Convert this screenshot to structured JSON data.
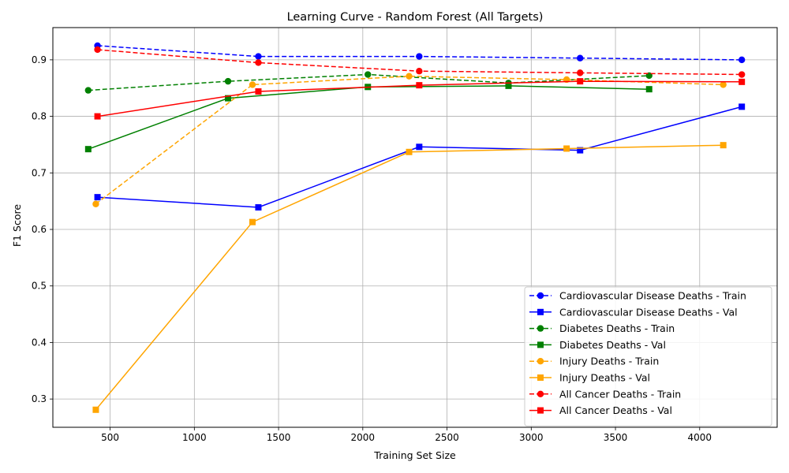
{
  "chart_data": {
    "type": "line",
    "title": "Learning Curve - Random Forest (All Targets)",
    "xlabel": "Training Set Size",
    "ylabel": "F1 Score",
    "xlim": [
      160,
      4460
    ],
    "ylim": [
      0.25,
      0.957
    ],
    "xticks": [
      500,
      1000,
      1500,
      2000,
      2500,
      3000,
      3500,
      4000
    ],
    "yticks": [
      0.3,
      0.4,
      0.5,
      0.6,
      0.7,
      0.8,
      0.9
    ],
    "grid": true,
    "legend_position": "lower-right",
    "series": [
      {
        "name": "Cardiovascular Disease Deaths - Train",
        "color": "#0000ff",
        "linestyle": "dashed",
        "marker": "circle",
        "x": [
          425,
          1380,
          2335,
          3290,
          4250
        ],
        "y": [
          0.925,
          0.906,
          0.906,
          0.903,
          0.9
        ]
      },
      {
        "name": "Cardiovascular Disease Deaths - Val",
        "color": "#0000ff",
        "linestyle": "solid",
        "marker": "square",
        "x": [
          425,
          1380,
          2335,
          3290,
          4250
        ],
        "y": [
          0.657,
          0.639,
          0.746,
          0.74,
          0.817
        ]
      },
      {
        "name": "Diabetes Deaths - Train",
        "color": "#008000",
        "linestyle": "dashed",
        "marker": "circle",
        "x": [
          370,
          1200,
          2030,
          2865,
          3700
        ],
        "y": [
          0.846,
          0.862,
          0.874,
          0.859,
          0.872
        ]
      },
      {
        "name": "Diabetes Deaths - Val",
        "color": "#008000",
        "linestyle": "solid",
        "marker": "square",
        "x": [
          370,
          1200,
          2030,
          2865,
          3700
        ],
        "y": [
          0.742,
          0.832,
          0.852,
          0.854,
          0.848
        ]
      },
      {
        "name": "Injury Deaths - Train",
        "color": "#ffa500",
        "linestyle": "dashed",
        "marker": "circle",
        "x": [
          415,
          1345,
          2275,
          3210,
          4140
        ],
        "y": [
          0.645,
          0.856,
          0.871,
          0.865,
          0.856
        ]
      },
      {
        "name": "Injury Deaths - Val",
        "color": "#ffa500",
        "linestyle": "solid",
        "marker": "square",
        "x": [
          415,
          1345,
          2275,
          3210,
          4140
        ],
        "y": [
          0.281,
          0.613,
          0.737,
          0.743,
          0.749
        ]
      },
      {
        "name": "All Cancer Deaths - Train",
        "color": "#ff0000",
        "linestyle": "dashed",
        "marker": "circle",
        "x": [
          425,
          1380,
          2335,
          3290,
          4250
        ],
        "y": [
          0.918,
          0.895,
          0.88,
          0.877,
          0.874
        ]
      },
      {
        "name": "All Cancer Deaths - Val",
        "color": "#ff0000",
        "linestyle": "solid",
        "marker": "square",
        "x": [
          425,
          1380,
          2335,
          3290,
          4250
        ],
        "y": [
          0.8,
          0.844,
          0.855,
          0.862,
          0.861
        ]
      }
    ]
  }
}
